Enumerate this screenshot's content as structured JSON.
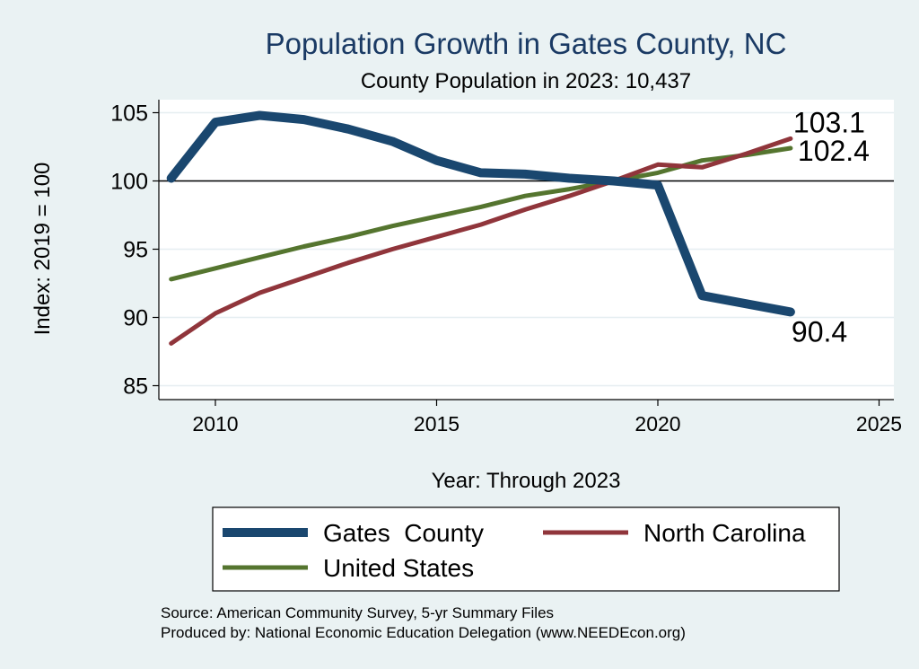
{
  "chart_data": {
    "type": "line",
    "title": "Population Growth in Gates County, NC",
    "subtitle": "County Population in 2023: 10,437",
    "xlabel": "Year: Through 2023",
    "ylabel": "Index: 2019 = 100",
    "xlim": [
      2009,
      2025
    ],
    "ylim": [
      85,
      105
    ],
    "x_ticks": [
      2010,
      2015,
      2020,
      2025
    ],
    "y_ticks": [
      85,
      90,
      95,
      100,
      105
    ],
    "reference_line": 100,
    "x": [
      2009,
      2010,
      2011,
      2012,
      2013,
      2014,
      2015,
      2016,
      2017,
      2018,
      2019,
      2020,
      2021,
      2022,
      2023
    ],
    "series": [
      {
        "name": "Gates  County",
        "color": "#1a476f",
        "values": [
          100.2,
          104.3,
          104.8,
          104.5,
          103.8,
          102.9,
          101.5,
          100.6,
          100.5,
          100.2,
          100.0,
          99.7,
          91.6,
          91.0,
          90.4
        ],
        "end_label": "90.4"
      },
      {
        "name": "North Carolina",
        "color": "#90353b",
        "values": [
          88.1,
          90.3,
          91.8,
          92.9,
          94.0,
          95.0,
          95.9,
          96.8,
          97.9,
          98.9,
          100.0,
          101.2,
          101.0,
          102.0,
          103.1
        ],
        "end_label": "103.1"
      },
      {
        "name": "United States",
        "color": "#55752f",
        "values": [
          92.8,
          93.6,
          94.4,
          95.2,
          95.9,
          96.7,
          97.4,
          98.1,
          98.9,
          99.4,
          100.0,
          100.6,
          101.5,
          101.9,
          102.4
        ],
        "end_label": "102.4"
      }
    ],
    "legend_position": "bottom"
  },
  "footer": {
    "source": "Source: American Community Survey, 5-yr Summary Files",
    "produced_by": "Produced by: National Economic Education Delegation (www.NEEDEcon.org)"
  }
}
